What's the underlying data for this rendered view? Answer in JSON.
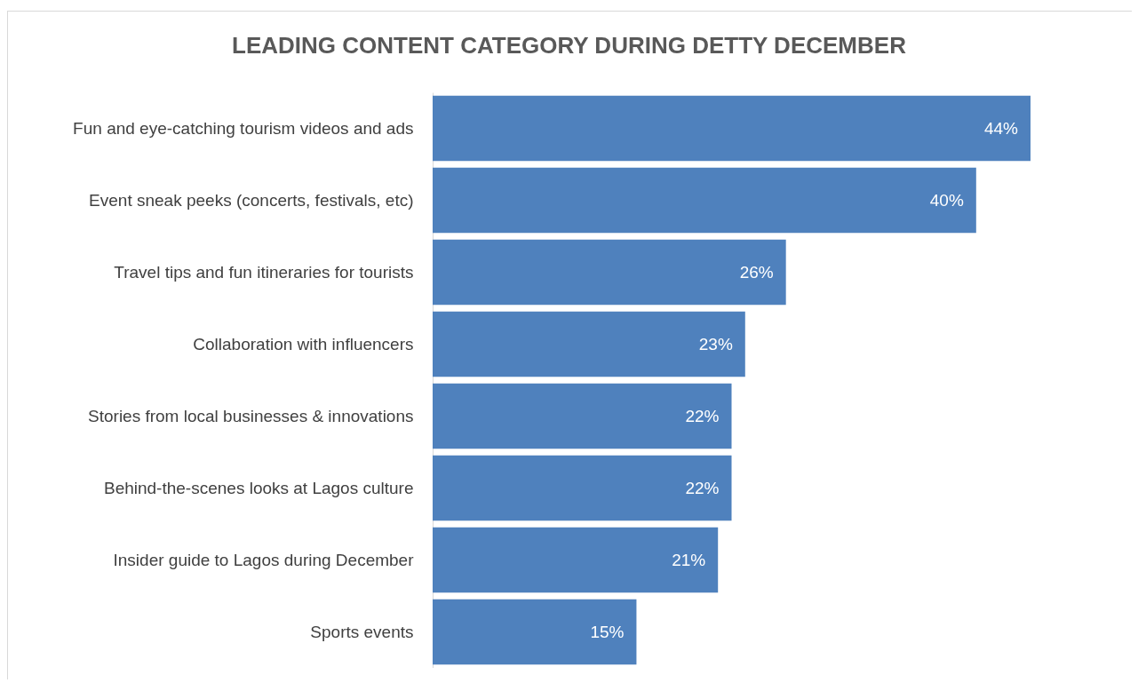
{
  "chart_data": {
    "type": "bar",
    "orientation": "horizontal",
    "title": "LEADING CONTENT CATEGORY DURING DETTY DECEMBER",
    "categories": [
      "Fun and eye-catching tourism videos and ads",
      "Event sneak peeks (concerts, festivals, etc)",
      "Travel tips and fun itineraries for tourists",
      "Collaboration with influencers",
      "Stories from local businesses & innovations",
      "Behind-the-scenes looks at Lagos culture",
      "Insider guide to Lagos during December",
      "Sports events"
    ],
    "values": [
      44,
      40,
      26,
      23,
      22,
      22,
      21,
      15
    ],
    "value_labels": [
      "44%",
      "40%",
      "26%",
      "23%",
      "22%",
      "22%",
      "21%",
      "15%"
    ],
    "color": "#4f81bd"
  }
}
